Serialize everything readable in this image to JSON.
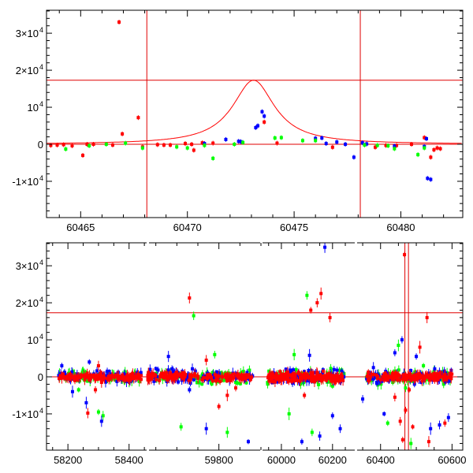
{
  "chart_data": [
    {
      "type": "scatter",
      "panel": "top",
      "xlim": [
        60463.4,
        60482.9
      ],
      "ylim": [
        -19800,
        36200
      ],
      "x_ticks": [
        {
          "value": 60465,
          "label": "60465"
        },
        {
          "value": 60470,
          "label": "60470"
        },
        {
          "value": 60475,
          "label": "60475"
        },
        {
          "value": 60480,
          "label": "60480"
        }
      ],
      "y_ticks": [
        {
          "value": 30000,
          "base": "3×10",
          "exp": "4"
        },
        {
          "value": 20000,
          "base": "2×10",
          "exp": "4"
        },
        {
          "value": 10000,
          "base": "10",
          "exp": "4"
        },
        {
          "value": 0,
          "base": "0",
          "exp": ""
        },
        {
          "value": -10000,
          "base": "-1×10",
          "exp": "4"
        }
      ],
      "reference_lines": {
        "vertical": [
          60468.1,
          60478.1
        ],
        "horizontal": [
          17300,
          0
        ]
      },
      "model_curve": {
        "type": "lorentzian",
        "peak_x": 60473.1,
        "peak_y": 17300,
        "half_width": 1.2,
        "color": "#ff0000"
      },
      "series": [
        {
          "color": "#ff0000",
          "points": [
            [
              60463.6,
              -300
            ],
            [
              60463.9,
              -200
            ],
            [
              60464.2,
              -100
            ],
            [
              60464.6,
              -400
            ],
            [
              60465.1,
              -3000
            ],
            [
              60465.3,
              0
            ],
            [
              60465.6,
              0
            ],
            [
              60466.5,
              -200
            ],
            [
              60466.8,
              33000
            ],
            [
              60466.95,
              2800
            ],
            [
              60467.7,
              7200
            ],
            [
              60467.9,
              -700
            ],
            [
              60468.6,
              -100
            ],
            [
              60468.9,
              -200
            ],
            [
              60469.2,
              -200
            ],
            [
              60469.9,
              200
            ],
            [
              60470.2,
              0
            ],
            [
              60470.3,
              -1600
            ],
            [
              60470.7,
              400
            ],
            [
              60471.2,
              300
            ],
            [
              60473.6,
              6000
            ],
            [
              60474.2,
              300
            ],
            [
              60476.8,
              -800
            ],
            [
              60478.8,
              -800
            ],
            [
              60479.3,
              -300
            ],
            [
              60479.8,
              -300
            ],
            [
              60480.5,
              0
            ],
            [
              60481.1,
              1800
            ],
            [
              60481.4,
              -3500
            ],
            [
              60481.55,
              -1500
            ],
            [
              60481.7,
              -1000
            ],
            [
              60481.85,
              -1200
            ]
          ]
        },
        {
          "color": "#0000ff",
          "points": [
            [
              60470.8,
              200
            ],
            [
              60471.8,
              1300
            ],
            [
              60472.4,
              800
            ],
            [
              60472.5,
              700
            ],
            [
              60473.2,
              4500
            ],
            [
              60473.3,
              5000
            ],
            [
              60473.6,
              7600
            ],
            [
              60473.5,
              8800
            ],
            [
              60476.0,
              1600
            ],
            [
              60476.3,
              1700
            ],
            [
              60476.5,
              200
            ],
            [
              60477.0,
              600
            ],
            [
              60477.4,
              0
            ],
            [
              60477.8,
              -3500
            ],
            [
              60478.2,
              400
            ],
            [
              60478.4,
              100
            ],
            [
              60479.7,
              -500
            ],
            [
              60481.1,
              -600
            ],
            [
              60481.2,
              1500
            ],
            [
              60481.25,
              -9200
            ],
            [
              60481.4,
              -9500
            ]
          ]
        },
        {
          "color": "#00ff00",
          "points": [
            [
              60464.3,
              -1300
            ],
            [
              60465.4,
              -400
            ],
            [
              60466.2,
              0
            ],
            [
              60467.1,
              300
            ],
            [
              60467.9,
              -1000
            ],
            [
              60469.5,
              -700
            ],
            [
              60470.0,
              -1000
            ],
            [
              60470.8,
              -300
            ],
            [
              60471.2,
              -3800
            ],
            [
              60472.2,
              0
            ],
            [
              60472.6,
              500
            ],
            [
              60474.1,
              1700
            ],
            [
              60474.4,
              1800
            ],
            [
              60475.4,
              1000
            ],
            [
              60476.0,
              1000
            ],
            [
              60478.3,
              -200
            ],
            [
              60478.9,
              -300
            ],
            [
              60479.4,
              -400
            ],
            [
              60479.7,
              -1200
            ],
            [
              60480.8,
              -2800
            ],
            [
              60481.1,
              -1000
            ]
          ]
        }
      ]
    },
    {
      "type": "scatter",
      "panel": "bottom",
      "segments": [
        {
          "xlim": [
            58130,
            58460
          ],
          "x_ticks": [
            {
              "value": 58200,
              "label": "58200"
            },
            {
              "value": 58400,
              "label": "58400"
            }
          ]
        },
        {
          "xlim": [
            59630,
            59900
          ],
          "x_ticks": [
            {
              "value": 59800,
              "label": "59800"
            }
          ]
        },
        {
          "xlim": [
            59920,
            60290
          ],
          "x_ticks": [
            {
              "value": 60000,
              "label": "60000"
            },
            {
              "value": 60200,
              "label": "60200"
            }
          ]
        },
        {
          "xlim": [
            60330,
            60630
          ],
          "x_ticks": [
            {
              "value": 60400,
              "label": "60400"
            },
            {
              "value": 60600,
              "label": "60600"
            }
          ]
        }
      ],
      "ylim": [
        -19800,
        36200
      ],
      "y_ticks": [
        {
          "value": 30000,
          "base": "3×10",
          "exp": "4"
        },
        {
          "value": 20000,
          "base": "2×10",
          "exp": "4"
        },
        {
          "value": 10000,
          "base": "10",
          "exp": "4"
        },
        {
          "value": 0,
          "base": "0",
          "exp": ""
        },
        {
          "value": -10000,
          "base": "-1×10",
          "exp": "4"
        }
      ],
      "reference_lines": {
        "vertical": [
          60468.1,
          60478.1
        ],
        "horizontal": [
          17300,
          0
        ]
      },
      "clusters": [
        {
          "x": [
            58170,
            58440
          ],
          "spread": 2500,
          "count": 140
        },
        {
          "x": [
            59630,
            59880
          ],
          "spread": 3000,
          "count": 150
        },
        {
          "x": [
            59945,
            60245
          ],
          "spread": 3200,
          "count": 170
        },
        {
          "x": [
            60360,
            60600
          ],
          "spread": 3000,
          "count": 150
        }
      ],
      "series": [
        {
          "color": "#ff0000",
          "outliers": [
            [
              58265,
              -9800
            ],
            [
              58290,
              -3500
            ],
            [
              58300,
              3000
            ],
            [
              58310,
              -1500
            ],
            [
              59730,
              21300
            ],
            [
              59770,
              4500
            ],
            [
              59800,
              -8000
            ],
            [
              59820,
              -5000
            ],
            [
              59840,
              -3000
            ],
            [
              60090,
              -5000
            ],
            [
              60115,
              18000
            ],
            [
              60140,
              20000
            ],
            [
              60155,
              22500
            ],
            [
              60190,
              16000
            ],
            [
              60210,
              -1500
            ],
            [
              60440,
              -5500
            ],
            [
              60455,
              -12000
            ],
            [
              60462,
              -17000
            ],
            [
              60467,
              33000
            ],
            [
              60470,
              -9000
            ],
            [
              60480,
              -3500
            ],
            [
              60490,
              -13500
            ],
            [
              60510,
              8000
            ],
            [
              60530,
              16000
            ],
            [
              60535,
              -17500
            ],
            [
              60580,
              -12500
            ]
          ]
        },
        {
          "color": "#0000ff",
          "outliers": [
            [
              58180,
              3000
            ],
            [
              58215,
              -4000
            ],
            [
              58260,
              -7000
            ],
            [
              58270,
              4000
            ],
            [
              58310,
              -12000
            ],
            [
              59680,
              5500
            ],
            [
              59730,
              -3500
            ],
            [
              59770,
              -14000
            ],
            [
              59870,
              -17500
            ],
            [
              60080,
              -17500
            ],
            [
              60110,
              5800
            ],
            [
              60150,
              -16000
            ],
            [
              60170,
              35000
            ],
            [
              60200,
              -10500
            ],
            [
              60230,
              -14000
            ],
            [
              60350,
              -6000
            ],
            [
              60380,
              2500
            ],
            [
              60410,
              -10000
            ],
            [
              60440,
              6500
            ],
            [
              60460,
              10000
            ],
            [
              60500,
              5500
            ],
            [
              60540,
              -14000
            ],
            [
              60565,
              -13000
            ],
            [
              60590,
              -11000
            ]
          ]
        },
        {
          "color": "#00ff00",
          "outliers": [
            [
              58205,
              1000
            ],
            [
              58235,
              -3500
            ],
            [
              58300,
              -9500
            ],
            [
              58315,
              -10500
            ],
            [
              59710,
              -13500
            ],
            [
              59740,
              16500
            ],
            [
              59790,
              6000
            ],
            [
              59820,
              -15000
            ],
            [
              60030,
              -10000
            ],
            [
              60050,
              6000
            ],
            [
              60100,
              22000
            ],
            [
              60120,
              -15000
            ],
            [
              60160,
              1000
            ],
            [
              60200,
              -2500
            ],
            [
              60420,
              -12500
            ],
            [
              60450,
              8500
            ],
            [
              60470,
              -3000
            ],
            [
              60485,
              -18000
            ],
            [
              60520,
              3000
            ],
            [
              60550,
              1500
            ]
          ]
        }
      ]
    }
  ]
}
